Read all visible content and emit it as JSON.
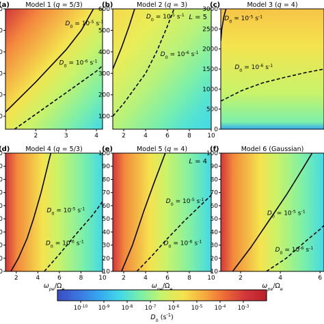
{
  "chart_data": [
    {
      "type": "heatmap",
      "panel_label": "(a)",
      "title": "Model 1 (q = 5/3)",
      "title_parts": {
        "pre": "Model 1 (",
        "q": "q",
        "post": " = 5/3)"
      },
      "L_label": "",
      "xlabel": "",
      "ylabel": "",
      "xlim": [
        1,
        4.2
      ],
      "ylim": [
        20,
        300
      ],
      "x_ticks": [
        2,
        3,
        4
      ],
      "y_ticks": [
        50,
        100,
        150,
        200,
        250,
        300
      ],
      "contours": [
        {
          "label": "D0 = 10^-5 s^-1",
          "style": "solid",
          "points": [
            [
              1.0,
              60
            ],
            [
              2.0,
              130
            ],
            [
              3.0,
              205
            ],
            [
              3.5,
              250
            ],
            [
              3.9,
              300
            ]
          ]
        },
        {
          "label": "D0 = 10^-6 s^-1",
          "style": "dashed",
          "points": [
            [
              1.0,
              5
            ],
            [
              1.5,
              30
            ],
            [
              2.0,
              55
            ],
            [
              3.0,
              105
            ],
            [
              4.0,
              155
            ],
            [
              4.2,
              168
            ]
          ]
        }
      ],
      "contour_labels": [
        {
          "text": "D0 = 10^-5 s^-1",
          "x": 3.6,
          "y": 262
        },
        {
          "text": "D0 = 10^-6 s^-1",
          "x": 3.4,
          "y": 170
        }
      ]
    },
    {
      "type": "heatmap",
      "panel_label": "(b)",
      "title": "Model 2 (q = 3)",
      "title_parts": {
        "pre": "Model 2 (",
        "q": "q",
        "post": " = 3)"
      },
      "L_label": "L = 5",
      "xlabel": "",
      "ylabel": "",
      "xlim": [
        1,
        10
      ],
      "ylim": [
        40,
        600
      ],
      "x_ticks": [
        2,
        4,
        6,
        8,
        10
      ],
      "y_ticks": [
        100,
        200,
        300,
        400,
        500,
        600
      ],
      "contours": [
        {
          "label": "D0 = 10^-5 s^-1",
          "style": "solid",
          "points": [
            [
              1.0,
              320
            ],
            [
              1.8,
              420
            ],
            [
              2.5,
              520
            ],
            [
              3.0,
              600
            ]
          ]
        },
        {
          "label": "D0 = 10^-6 s^-1",
          "style": "dashed",
          "points": [
            [
              1.0,
              100
            ],
            [
              2.0,
              160
            ],
            [
              3.0,
              230
            ],
            [
              4.0,
              300
            ],
            [
              5.0,
              400
            ],
            [
              6.0,
              520
            ],
            [
              6.6,
              600
            ]
          ]
        }
      ],
      "contour_labels": [
        {
          "text": "D0 = 10^-5 s^-1",
          "x": 5.8,
          "y": 555
        },
        {
          "text": "D0 = 10^-6 s^-1",
          "x": 7.1,
          "y": 380
        }
      ]
    },
    {
      "type": "heatmap",
      "panel_label": "(c)",
      "title": "Model 3 (q = 4)",
      "title_parts": {
        "pre": "Model 3 (",
        "q": "q",
        "post": " = 4)"
      },
      "L_label": "",
      "xlabel": "",
      "ylabel": "",
      "xlim": [
        1,
        6
      ],
      "ylim": [
        0,
        3000
      ],
      "x_ticks": [],
      "y_ticks": [
        0,
        500,
        1000,
        1500,
        2000,
        2500,
        3000
      ],
      "contours": [
        {
          "label": "D0 = 10^-5 s^-1",
          "style": "solid",
          "points": [
            [
              1.0,
              2200
            ],
            [
              1.05,
              2500
            ],
            [
              1.15,
              2800
            ],
            [
              1.25,
              3000
            ]
          ]
        },
        {
          "label": "D0 = 10^-6 s^-1",
          "style": "dashed",
          "points": [
            [
              1.0,
              700
            ],
            [
              2.0,
              960
            ],
            [
              3.0,
              1150
            ],
            [
              4.0,
              1280
            ],
            [
              5.0,
              1400
            ],
            [
              6.0,
              1500
            ]
          ]
        }
      ],
      "contour_labels": [
        {
          "text": "D0 = 10^-5 s^-1",
          "x": 2.1,
          "y": 2720
        },
        {
          "text": "D0 = 10^-6 s^-1",
          "x": 2.6,
          "y": 1500
        }
      ]
    },
    {
      "type": "heatmap",
      "panel_label": "(d)",
      "title": "Model 4 (q = 5/3)",
      "title_parts": {
        "pre": "Model 4 (",
        "q": "q",
        "post": " = 5/3)"
      },
      "L_label": "",
      "xlabel": "ω_pe/Ω_e",
      "ylabel": "",
      "xlim": [
        1,
        10
      ],
      "ylim": [
        10,
        100
      ],
      "x_ticks": [
        2,
        4,
        6,
        8,
        10
      ],
      "y_ticks": [
        10,
        20,
        30,
        40,
        50,
        60,
        70,
        80,
        90,
        100
      ],
      "contours": [
        {
          "label": "D0 = 10^-5 s^-1",
          "style": "solid",
          "points": [
            [
              1.5,
              10
            ],
            [
              2.2,
              20
            ],
            [
              3.0,
              35
            ],
            [
              3.6,
              50
            ],
            [
              4.3,
              70
            ],
            [
              5.2,
              100
            ]
          ]
        },
        {
          "label": "D0 = 10^-6 s^-1",
          "style": "dashed",
          "points": [
            [
              4.6,
              10
            ],
            [
              6.0,
              23
            ],
            [
              7.5,
              38
            ],
            [
              9.0,
              52
            ],
            [
              10.0,
              63
            ]
          ]
        }
      ],
      "contour_labels": [
        {
          "text": "D0 = 10^-5 s^-1",
          "x": 6.6,
          "y": 55
        },
        {
          "text": "D0 = 10^-6 s^-1",
          "x": 6.5,
          "y": 30
        }
      ]
    },
    {
      "type": "heatmap",
      "panel_label": "(e)",
      "title": "Model 5 (q = 4)",
      "title_parts": {
        "pre": "Model 5 (",
        "q": "q",
        "post": " = 4)"
      },
      "L_label": "L = 4",
      "xlabel": "ω_pe/Ω_e",
      "ylabel": "",
      "xlim": [
        1,
        10
      ],
      "ylim": [
        10,
        100
      ],
      "x_ticks": [
        2,
        4,
        6,
        8,
        10
      ],
      "y_ticks": [
        10,
        20,
        30,
        40,
        50,
        60,
        70,
        80,
        90,
        100
      ],
      "contours": [
        {
          "label": "D0 = 10^-5 s^-1",
          "style": "solid",
          "points": [
            [
              1.8,
              10
            ],
            [
              2.8,
              30
            ],
            [
              3.8,
              55
            ],
            [
              4.8,
              78
            ],
            [
              5.8,
              100
            ]
          ]
        },
        {
          "label": "D0 = 10^-6 s^-1",
          "style": "dashed",
          "points": [
            [
              3.2,
              10
            ],
            [
              4.6,
              22
            ],
            [
              6.0,
              35
            ],
            [
              7.5,
              48
            ],
            [
              9.0,
              60
            ],
            [
              10.0,
              68
            ]
          ]
        }
      ],
      "contour_labels": [
        {
          "text": "D0 = 10^-5 s^-1",
          "x": 7.6,
          "y": 62
        },
        {
          "text": "D0 = 10^-6 s^-1",
          "x": 7.4,
          "y": 30
        }
      ]
    },
    {
      "type": "heatmap",
      "panel_label": "(f)",
      "title": "Model 6 (Gaussian)",
      "title_parts": {
        "pre": "Model 6 (Gaussian)",
        "q": "",
        "post": ""
      },
      "L_label": "",
      "xlabel": "ω_pe/Ω_e",
      "ylabel": "",
      "xlim": [
        1,
        6.2
      ],
      "ylim": [
        10,
        100
      ],
      "x_ticks": [
        2,
        4,
        6
      ],
      "y_ticks": [
        10,
        20,
        30,
        40,
        50,
        60,
        70,
        80,
        90,
        100
      ],
      "contours": [
        {
          "label": "D0 = 10^-5 s^-1",
          "style": "solid",
          "points": [
            [
              1.6,
              10
            ],
            [
              2.5,
              28
            ],
            [
              3.4,
              48
            ],
            [
              4.3,
              68
            ],
            [
              5.2,
              90
            ],
            [
              5.6,
              100
            ]
          ]
        },
        {
          "label": "D0 = 10^-6 s^-1",
          "style": "dashed",
          "points": [
            [
              3.3,
              10
            ],
            [
              4.3,
              20
            ],
            [
              5.2,
              32
            ],
            [
              6.0,
              42
            ],
            [
              6.2,
              45
            ]
          ]
        }
      ],
      "contour_labels": [
        {
          "text": "D0 = 10^-5 s^-1",
          "x": 4.3,
          "y": 53
        },
        {
          "text": "D0 = 10^-6 s^-1",
          "x": 4.7,
          "y": 25
        }
      ]
    }
  ],
  "colorbar": {
    "label": "D0 (s^-1)",
    "scale": "log",
    "range": [
      1e-11,
      0.01
    ],
    "tick_exponents": [
      -10,
      -9,
      -8,
      -7,
      -6,
      -5,
      -4,
      -3
    ],
    "colors": [
      "#3a4cc0",
      "#3b76e0",
      "#35a8f0",
      "#43d9e6",
      "#7cf0a8",
      "#c8f36a",
      "#f4e34e",
      "#f7ad3e",
      "#ed6936",
      "#d1363a",
      "#b8202a"
    ]
  }
}
